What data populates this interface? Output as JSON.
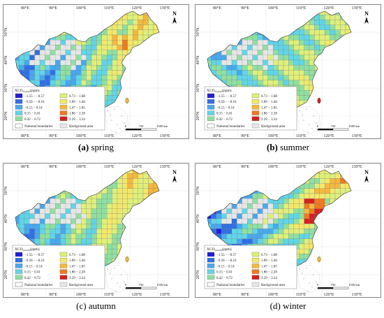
{
  "figure": {
    "lon_labels": [
      "80°E",
      "90°E",
      "100°E",
      "110°E",
      "120°E",
      "130°E"
    ],
    "lat_labels": [
      "50°N",
      "40°N",
      "30°N",
      "20°N"
    ],
    "north_label": "N",
    "legend": {
      "title": "XCO",
      "title_sub": "2Anom",
      "title_unit": "(ppm)",
      "classes": [
        {
          "label": "−1.55 − −0.57",
          "color": "#1f1fd6"
        },
        {
          "label": "−0.56 − −0.16",
          "color": "#2f6fe6"
        },
        {
          "label": "−0.15 − 0.14",
          "color": "#48a8ee"
        },
        {
          "label": "0.15 − 0.41",
          "color": "#5fd6e8"
        },
        {
          "label": "0.42 − 0.72",
          "color": "#8fe0a0"
        },
        {
          "label": "0.73 − 1.08",
          "color": "#dff07a"
        },
        {
          "label": "1.09 − 1.46",
          "color": "#f3e86a"
        },
        {
          "label": "1.47 − 1.85",
          "color": "#f5b83c"
        },
        {
          "label": "1.86 − 2.28",
          "color": "#ef7b1e"
        },
        {
          "label": "2.29 − 3.24",
          "color": "#d81f1f"
        }
      ],
      "national_boundaries": "National boundaries",
      "background_area": "Background area"
    },
    "scale": {
      "zero": "0",
      "mid": "750",
      "end": "1500 km"
    },
    "panels": [
      {
        "letter": "(a)",
        "season": "spring"
      },
      {
        "letter": "(b)",
        "season": "summer"
      },
      {
        "letter": "(c)",
        "season": "autumn"
      },
      {
        "letter": "(d)",
        "season": "winter"
      }
    ]
  }
}
